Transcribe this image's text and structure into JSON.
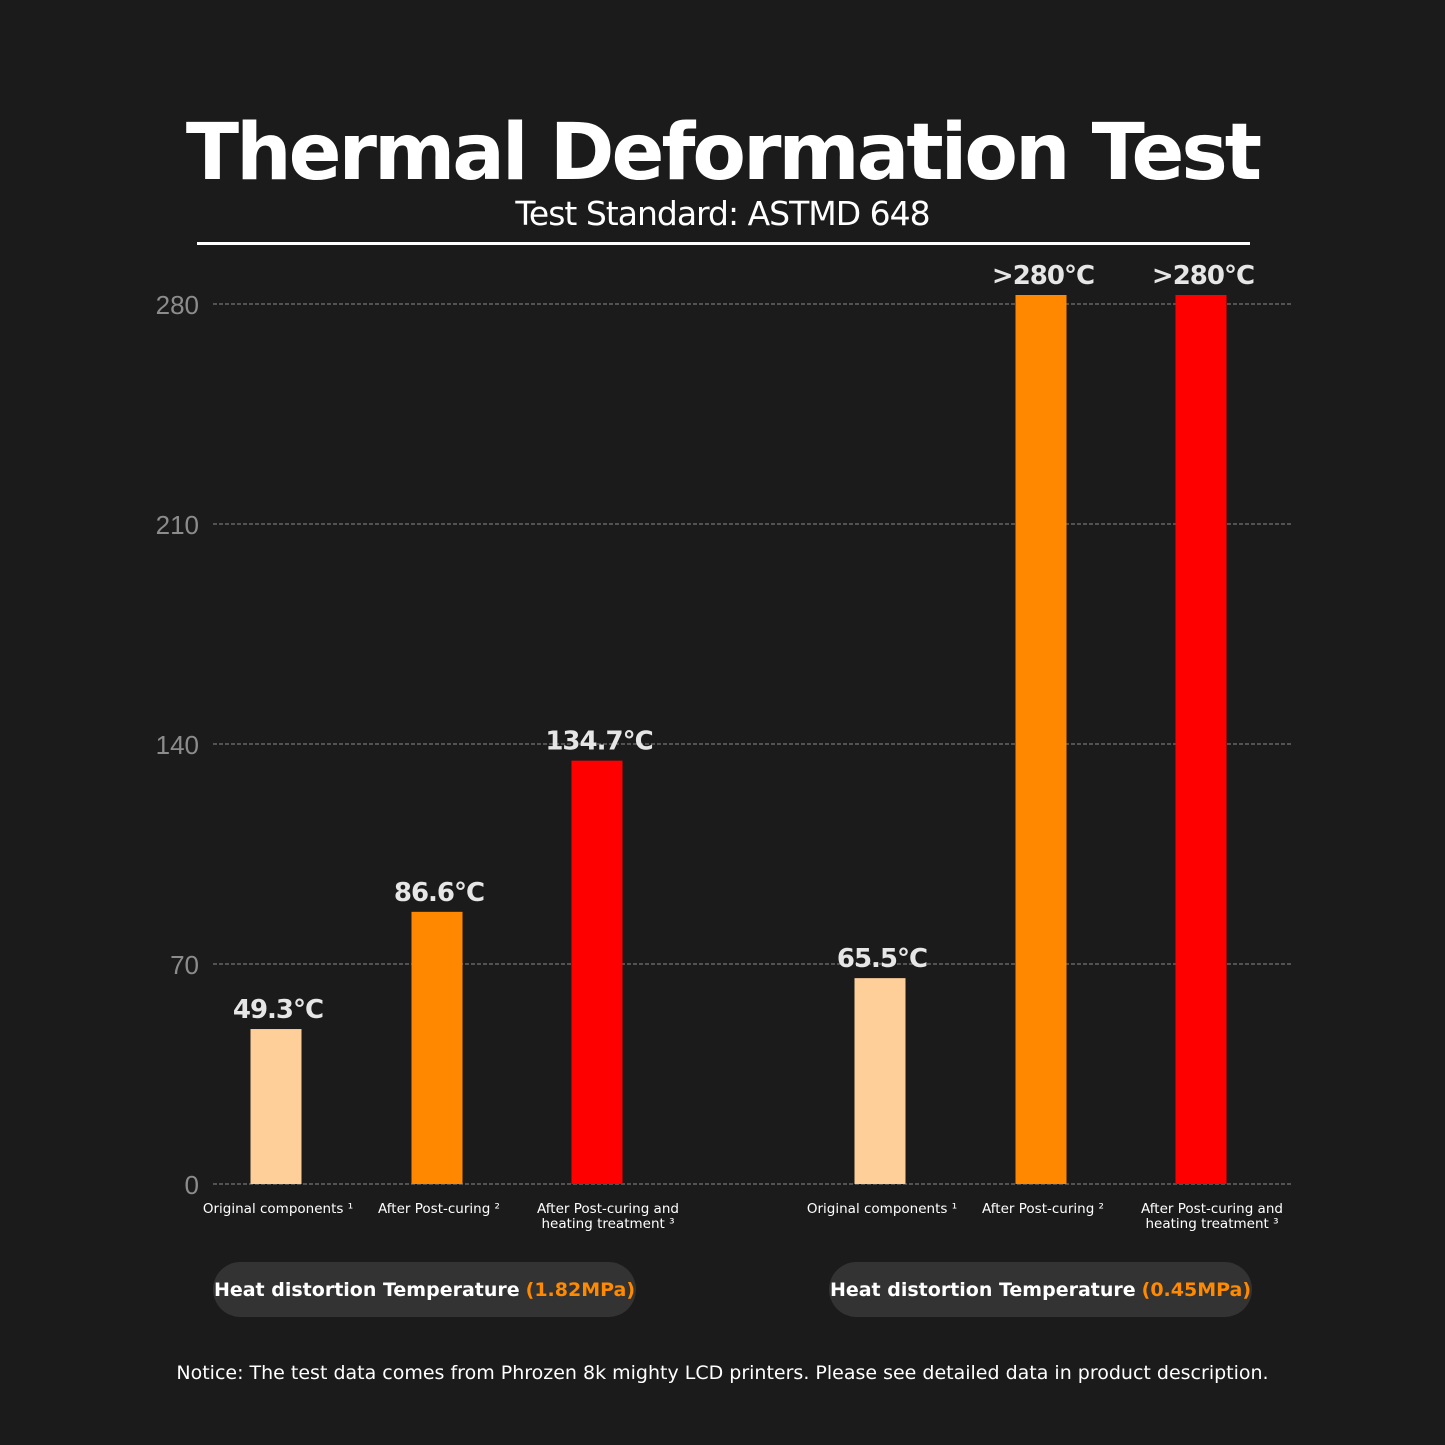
{
  "title": "Thermal Deformation Test",
  "subtitle": "Test Standard: ASTMD 648",
  "chart_data": {
    "type": "bar",
    "ylim": [
      0,
      280
    ],
    "yticks": [
      0,
      70,
      140,
      210,
      280
    ],
    "grid": true,
    "groups": [
      {
        "label": "Heat distortion Temperature",
        "label_highlight": "(1.82MPa)",
        "categories": [
          "Original components ¹",
          "After Post-curing ²",
          "After Post-curing and|heating treatment ³"
        ],
        "values": [
          49.3,
          86.6,
          134.7
        ],
        "data_labels": [
          "49.3°C",
          "86.6°C",
          "134.7°C"
        ]
      },
      {
        "label": "Heat distortion Temperature",
        "label_highlight": "(0.45MPa)",
        "categories": [
          "Original components ¹",
          "After Post-curing ²",
          "After Post-curing and|heating treatment ³"
        ],
        "values": [
          65.5,
          280,
          280
        ],
        "data_labels": [
          "65.5°C",
          ">280°C",
          ">280°C"
        ]
      }
    ],
    "colors": [
      "#ffcf9a",
      "#ff8800",
      "#ff0000"
    ]
  },
  "notice": "Notice: The test data comes from  Phrozen 8k mighty LCD printers. Please see detailed data in product description."
}
